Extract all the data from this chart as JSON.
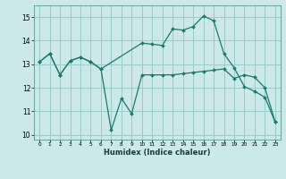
{
  "xlabel": "Humidex (Indice chaleur)",
  "bg_color": "#cce8e8",
  "grid_color": "#99cccc",
  "line_color": "#1a7a6e",
  "xlim": [
    -0.5,
    23.5
  ],
  "ylim": [
    9.8,
    15.5
  ],
  "yticks": [
    10,
    11,
    12,
    13,
    14,
    15
  ],
  "xticks": [
    0,
    1,
    2,
    3,
    4,
    5,
    6,
    7,
    8,
    9,
    10,
    11,
    12,
    13,
    14,
    15,
    16,
    17,
    18,
    19,
    20,
    21,
    22,
    23
  ],
  "series": [
    {
      "x": [
        0,
        1,
        2,
        3,
        4,
        5,
        6,
        7,
        8,
        9,
        10,
        11,
        12,
        13,
        14,
        15,
        16,
        17,
        18,
        19,
        20,
        21,
        22,
        23
      ],
      "y": [
        13.1,
        13.45,
        12.55,
        13.15,
        13.3,
        13.1,
        12.8,
        10.2,
        11.55,
        10.9,
        12.55,
        12.55,
        12.55,
        12.55,
        12.6,
        12.65,
        12.7,
        12.75,
        12.8,
        12.4,
        12.55,
        12.45,
        12.0,
        10.55
      ]
    },
    {
      "x": [
        0,
        1,
        2,
        3,
        4,
        5,
        6,
        10,
        11,
        12,
        13,
        14,
        15,
        16,
        17,
        18,
        19,
        20,
        21,
        22,
        23
      ],
      "y": [
        13.1,
        13.45,
        12.55,
        13.15,
        13.3,
        13.1,
        12.8,
        13.9,
        13.85,
        13.8,
        14.5,
        14.45,
        14.6,
        15.05,
        14.85,
        13.45,
        12.85,
        12.05,
        11.85,
        11.6,
        10.55
      ]
    }
  ]
}
